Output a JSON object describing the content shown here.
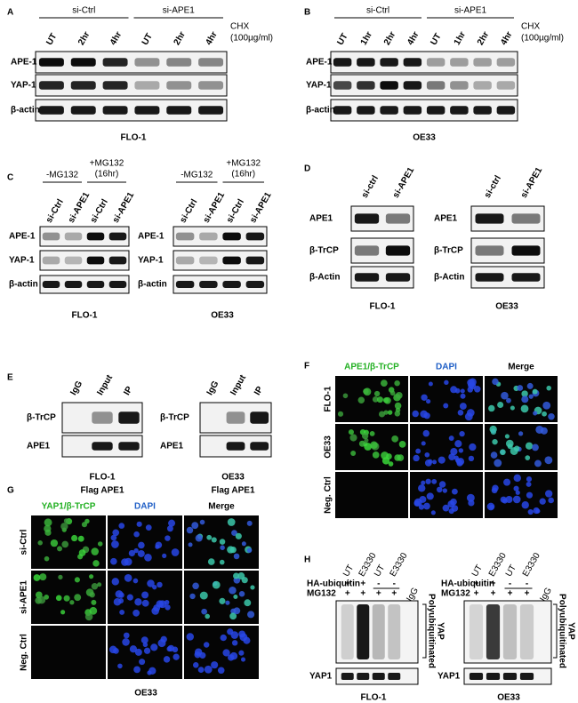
{
  "A": {
    "letter": "A",
    "groups": [
      "si-Ctrl",
      "si-APE1"
    ],
    "lanes": [
      "UT",
      "2hr",
      "4hr",
      "UT",
      "2hr",
      "4hr"
    ],
    "treatment": [
      "CHX",
      "(100µg/ml)"
    ],
    "rows": [
      "APE-1",
      "YAP-1",
      "β-actin"
    ],
    "caption": "FLO-1"
  },
  "B": {
    "letter": "B",
    "groups": [
      "si-Ctrl",
      "si-APE1"
    ],
    "lanes": [
      "UT",
      "1hr",
      "2hr",
      "4hr",
      "UT",
      "1hr",
      "2hr",
      "4hr"
    ],
    "treatment": [
      "CHX",
      "(100µg/ml)"
    ],
    "rows": [
      "APE-1",
      "YAP-1",
      "β-actin"
    ],
    "caption": "OE33"
  },
  "C": {
    "letter": "C",
    "blots": [
      {
        "groups": [
          "-MG132",
          "+MG132"
        ],
        "group_note": "(16hr)",
        "lanes": [
          "si-Ctrl",
          "si-APE1",
          "si-Ctrl",
          "si-APE1"
        ],
        "rows": [
          "APE-1",
          "YAP-1",
          "β-actin"
        ],
        "caption": "FLO-1"
      },
      {
        "groups": [
          "-MG132",
          "+MG132"
        ],
        "group_note": "(16hr)",
        "lanes": [
          "si-Ctrl",
          "si-APE1",
          "si-Ctrl",
          "si-APE1"
        ],
        "rows": [
          "APE-1",
          "YAP-1",
          "β-actin"
        ],
        "caption": "OE33"
      }
    ]
  },
  "D": {
    "letter": "D",
    "blots": [
      {
        "lanes": [
          "si-ctrl",
          "si-APE1"
        ],
        "rows": [
          "APE1",
          "β-TrCP",
          "β-Actin"
        ],
        "caption": "FLO-1"
      },
      {
        "lanes": [
          "si-ctrl",
          "si-APE1"
        ],
        "rows": [
          "APE1",
          "β-TrCP",
          "β-Actin"
        ],
        "caption": "OE33"
      }
    ]
  },
  "E": {
    "letter": "E",
    "blots": [
      {
        "lanes": [
          "IgG",
          "Input",
          "IP"
        ],
        "rows": [
          "β-TrCP",
          "APE1"
        ],
        "caption": [
          "FLO-1",
          "Flag APE1"
        ]
      },
      {
        "lanes": [
          "IgG",
          "Input",
          "IP"
        ],
        "rows": [
          "β-TrCP",
          "APE1"
        ],
        "caption": [
          "OE33",
          "Flag APE1"
        ]
      }
    ]
  },
  "F": {
    "letter": "F",
    "columns": [
      "APE1/β-TrCP",
      "DAPI",
      "Merge"
    ],
    "rows": [
      "FLO-1",
      "OE33",
      "Neg. Ctrl"
    ]
  },
  "G": {
    "letter": "G",
    "columns": [
      "YAP1/β-TrCP",
      "DAPI",
      "Merge"
    ],
    "rows": [
      "si-Ctrl",
      "si-APE1",
      "Neg. Ctrl"
    ],
    "caption": "OE33"
  },
  "H": {
    "letter": "H",
    "blots": [
      {
        "lanes": [
          "UT",
          "E3330",
          "UT",
          "E3330"
        ],
        "control_lane": "IgG",
        "conditions": [
          {
            "name": "HA-ubiquitin",
            "marks": [
              "+",
              "+",
              "-",
              "-"
            ]
          },
          {
            "name": "MG132",
            "marks": [
              "+",
              "+",
              "+",
              "+"
            ]
          }
        ],
        "bracket_label": [
          "Polyubiquitinated",
          "YAP"
        ],
        "loading_row": "YAP1",
        "caption": "FLO-1"
      },
      {
        "lanes": [
          "UT",
          "E3330",
          "UT",
          "E3330"
        ],
        "control_lane": "IgG",
        "conditions": [
          {
            "name": "HA-ubiquitin",
            "marks": [
              "+",
              "+",
              "-",
              "-"
            ]
          },
          {
            "name": "MG132",
            "marks": [
              "+",
              "+",
              "+",
              "+"
            ]
          }
        ],
        "bracket_label": [
          "Polyubiquitinated",
          "YAP"
        ],
        "loading_row": "YAP1",
        "caption": "OE33"
      }
    ]
  }
}
